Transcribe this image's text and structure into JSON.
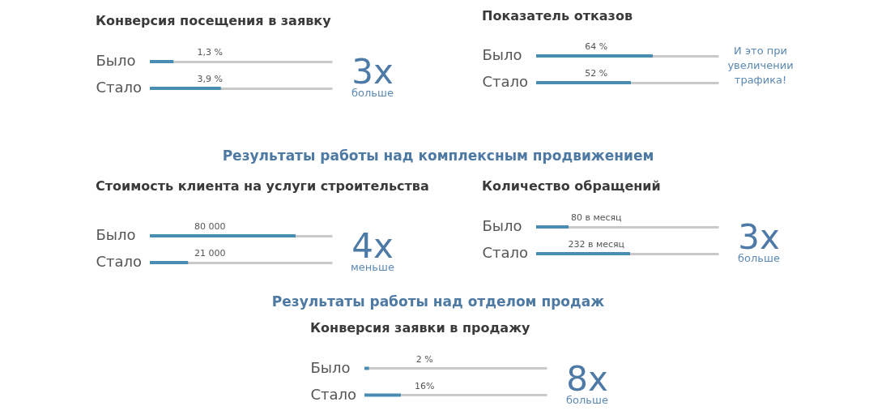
{
  "chart_data": [
    {
      "type": "bar",
      "orientation": "horizontal",
      "title": "Конверсия посещения в заявку",
      "categories": [
        "Было",
        "Стало"
      ],
      "values": [
        1.3,
        3.9
      ],
      "value_labels": [
        "1,3 %",
        "3,9 %"
      ],
      "color": "#4a8db3",
      "xlim": [
        0,
        10
      ],
      "grid": "y",
      "tick_labels": "y",
      "annotations": [
        "3x",
        "больше"
      ]
    },
    {
      "type": "bar",
      "orientation": "horizontal",
      "title": "Показатель отказов",
      "categories": [
        "Было",
        "Стало"
      ],
      "values": [
        64,
        52
      ],
      "value_labels": [
        "64 %",
        "52 %"
      ],
      "color": "#4a8db3",
      "xlim": [
        0,
        100
      ],
      "grid": "y",
      "tick_labels": "y",
      "annotations": [
        "И это при увеличении трафика!"
      ]
    },
    {
      "type": "other",
      "title": "Результаты работы над комплексным продвижением"
    },
    {
      "type": "bar",
      "orientation": "horizontal",
      "title": "Стоимость клиента на услуги строительства",
      "categories": [
        "Было",
        "Стало"
      ],
      "values": [
        80000,
        21000
      ],
      "value_labels": [
        "80 000",
        "21 000"
      ],
      "color": "#4a8db3",
      "xlim": [
        0,
        100000
      ],
      "grid": "y",
      "tick_labels": "y",
      "annotations": [
        "4x",
        "меньше"
      ]
    },
    {
      "type": "bar",
      "orientation": "horizontal",
      "title": "Количество обращений",
      "categories": [
        "Было",
        "Стало"
      ],
      "values": [
        80,
        232
      ],
      "value_labels": [
        "80 в месяц",
        "232 в месяц"
      ],
      "color": "#4a8db3",
      "xlim": [
        0,
        450
      ],
      "grid": "y",
      "tick_labels": "y",
      "annotations": [
        "3x",
        "больше"
      ]
    },
    {
      "type": "other",
      "title": "Результаты работы над отделом продаж"
    },
    {
      "type": "bar",
      "orientation": "horizontal",
      "title": "Конверсия заявки в продажу",
      "categories": [
        "Было",
        "Стало"
      ],
      "values": [
        2,
        16
      ],
      "value_labels": [
        "2 %",
        "16%"
      ],
      "color": "#4a8db3",
      "xlim": [
        0,
        80
      ],
      "grid": "y",
      "tick_labels": "y",
      "annotations": [
        "8x",
        "больше"
      ]
    }
  ]
}
